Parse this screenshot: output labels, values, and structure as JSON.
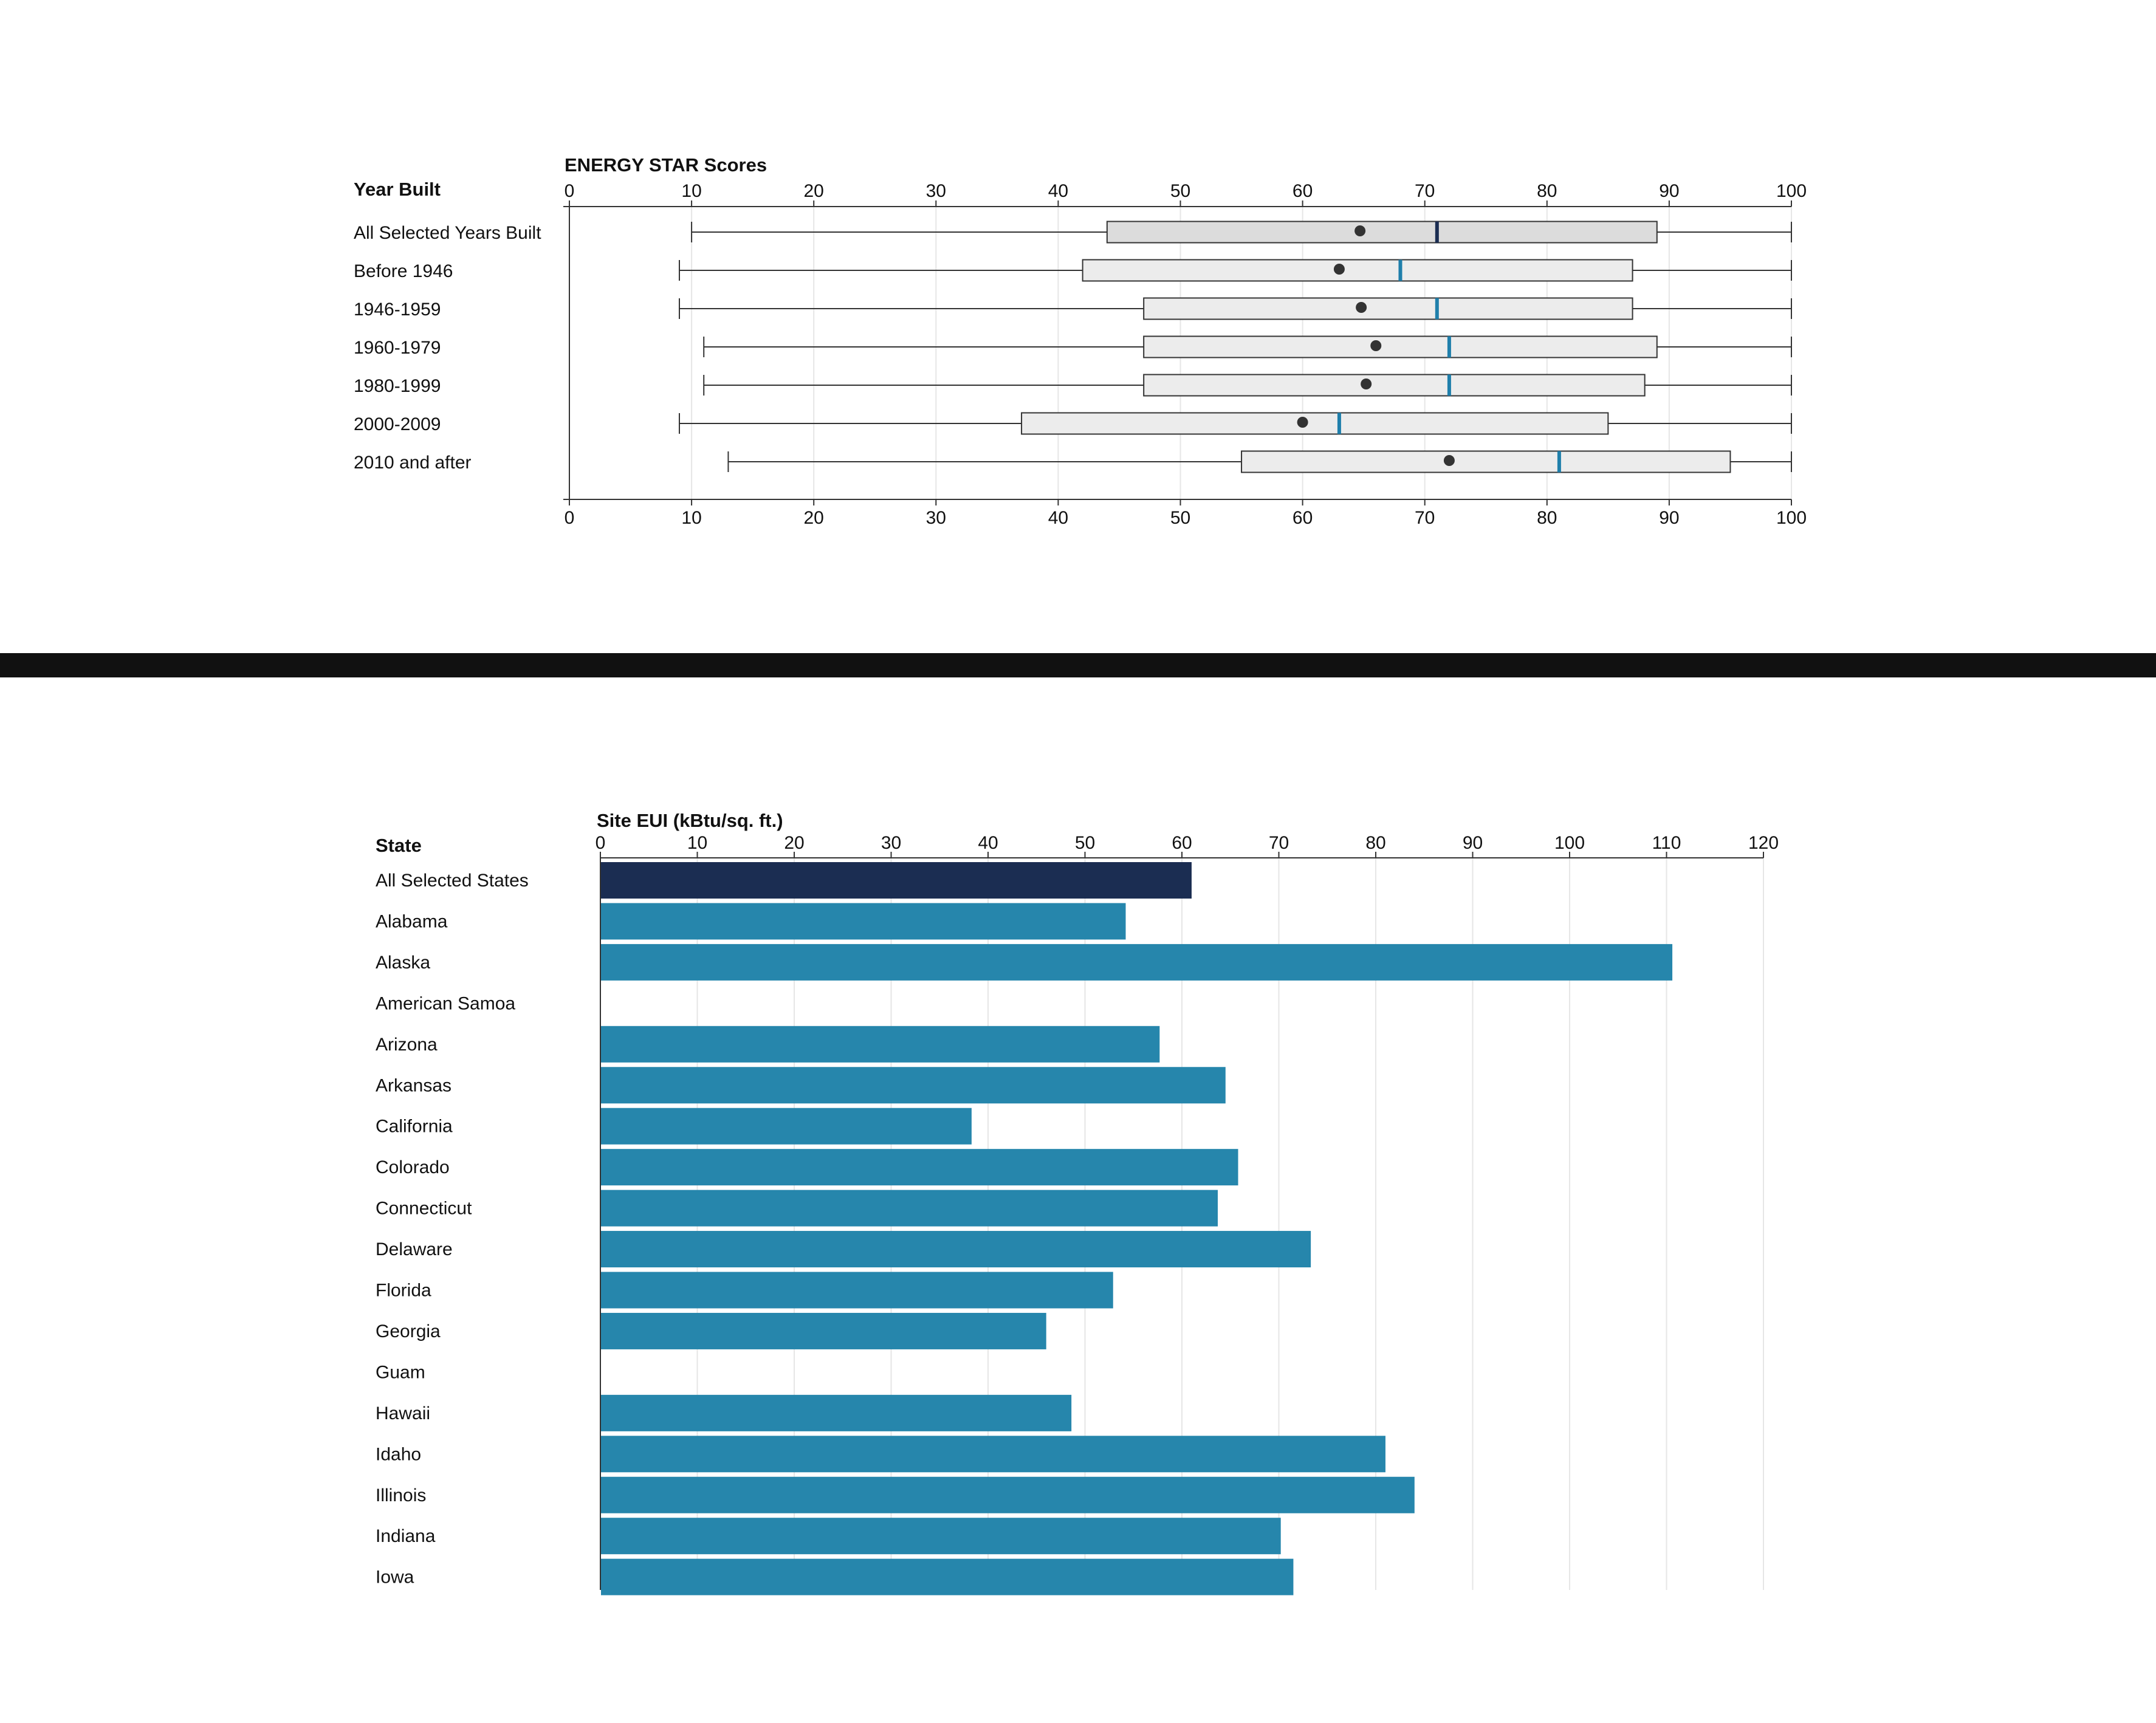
{
  "chart_data": [
    {
      "type": "boxplot",
      "title": "ENERGY STAR Scores",
      "row_header": "Year Built",
      "xlim": [
        0,
        100
      ],
      "ticks": [
        0,
        10,
        20,
        30,
        40,
        50,
        60,
        70,
        80,
        90,
        100
      ],
      "grid": true,
      "colors": {
        "median_highlight": "#1f7fab",
        "median_all": "#1b2d52",
        "box_fill": "#ececec",
        "box_fill_all": "#dcdcdc",
        "stroke": "#333333",
        "mean_dot": "#333333"
      },
      "series": [
        {
          "name": "All Selected Years Built",
          "min": 10,
          "q1": 44,
          "median": 71,
          "q3": 89,
          "max": 100,
          "mean": 64.7
        },
        {
          "name": "Before 1946",
          "min": 9,
          "q1": 42,
          "median": 68,
          "q3": 87,
          "max": 100,
          "mean": 63
        },
        {
          "name": "1946-1959",
          "min": 9,
          "q1": 47,
          "median": 71,
          "q3": 87,
          "max": 100,
          "mean": 64.8
        },
        {
          "name": "1960-1979",
          "min": 11,
          "q1": 47,
          "median": 72,
          "q3": 89,
          "max": 100,
          "mean": 66
        },
        {
          "name": "1980-1999",
          "min": 11,
          "q1": 47,
          "median": 72,
          "q3": 88,
          "max": 100,
          "mean": 65.2
        },
        {
          "name": "2000-2009",
          "min": 9,
          "q1": 37,
          "median": 63,
          "q3": 85,
          "max": 100,
          "mean": 60
        },
        {
          "name": "2010 and after",
          "min": 13,
          "q1": 55,
          "median": 81,
          "q3": 95,
          "max": 100,
          "mean": 72
        }
      ]
    },
    {
      "type": "bar",
      "orientation": "horizontal",
      "title": "Site EUI (kBtu/sq. ft.)",
      "row_header": "State",
      "xlim": [
        0,
        120
      ],
      "ticks": [
        0,
        10,
        20,
        30,
        40,
        50,
        60,
        70,
        80,
        90,
        100,
        110,
        120
      ],
      "grid": true,
      "colors": {
        "highlight": "#1b2d52",
        "bar": "#2686ac"
      },
      "categories": [
        "All Selected States",
        "Alabama",
        "Alaska",
        "American Samoa",
        "Arizona",
        "Arkansas",
        "California",
        "Colorado",
        "Connecticut",
        "Delaware",
        "Florida",
        "Georgia",
        "Guam",
        "Hawaii",
        "Idaho",
        "Illinois",
        "Indiana",
        "Iowa"
      ],
      "values": [
        61,
        54.2,
        110.6,
        null,
        57.7,
        64.5,
        38.3,
        65.8,
        63.7,
        73.3,
        52.9,
        46,
        null,
        48.6,
        81,
        84,
        70.2,
        71.5
      ]
    }
  ]
}
